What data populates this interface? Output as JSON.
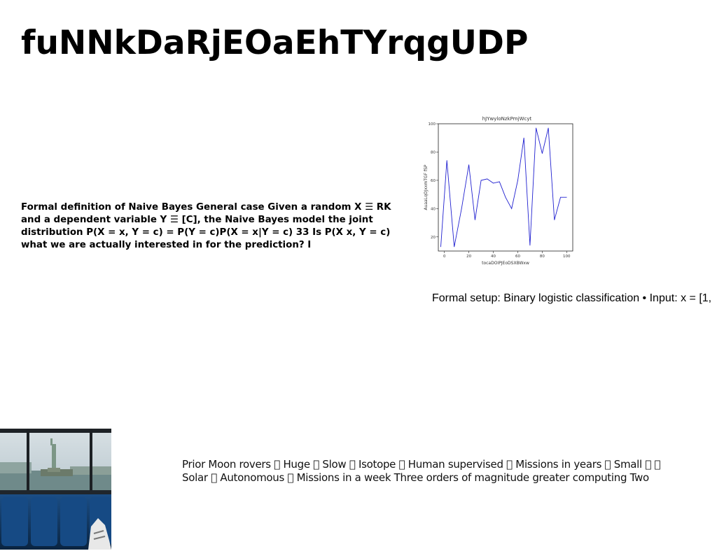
{
  "title": "fuNNkDaRjEOaEhTYrqgUDP",
  "bayes_text": "Formal definition of Naive Bayes General case Given a random X ☰ RK and a dependent variable Y ☰ [C], the Naive Bayes model the joint distribution P(X = x, Y = c) = P(Y = c)P(X = x|Y = c) 33 Is P(X x, Y = c) what we are actually interested in for the prediction? I",
  "setup_text": "Formal setup: Binary logistic classification • Input: x = [1,",
  "rovers_text": "Prior Moon rovers ￿ Huge ￿ Slow ￿ Isotope ￿ Human supervised ￿ Missions in years ￿ Small ￿ ￿ Solar ￿ Autonomous ￿ Missions in a week Three orders of magnitude greater computing Two",
  "photo": {
    "icon": "statue-of-liberty-window-photo"
  },
  "chart_data": {
    "type": "line",
    "title": "hJYwyloNzkPmjWcyt",
    "xlabel": "tocaDOIPJEoDSXBWxw",
    "ylabel": "AuaaLqOJxxmTGF fSP",
    "xlim": [
      -5,
      105
    ],
    "ylim": [
      10,
      100
    ],
    "xticks": [
      0,
      20,
      40,
      60,
      80,
      100
    ],
    "yticks": [
      20,
      40,
      60,
      80,
      100
    ],
    "grid": false,
    "color": "#2020d0",
    "series": [
      {
        "x": [
          -3,
          2,
          8,
          14,
          20,
          25,
          30,
          35,
          40,
          45,
          50,
          55,
          60,
          65,
          70,
          75,
          80,
          85,
          90,
          95,
          100
        ],
        "y": [
          13,
          74,
          13,
          40,
          71,
          32,
          60,
          61,
          58,
          59,
          48,
          40,
          60,
          90,
          14,
          97,
          79,
          97,
          32,
          48,
          48
        ]
      }
    ]
  }
}
